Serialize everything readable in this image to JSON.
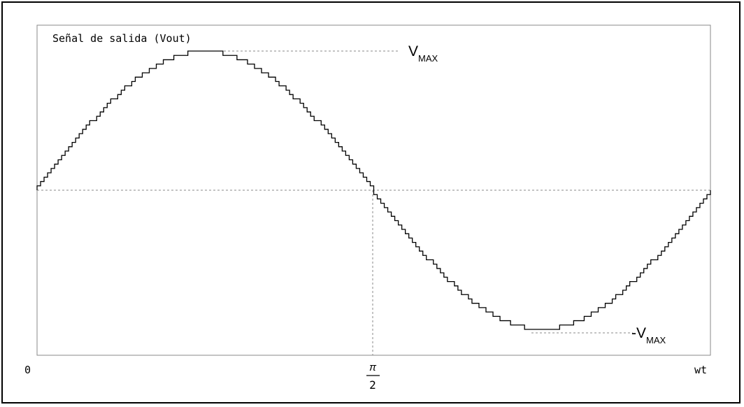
{
  "chart_data": {
    "type": "line",
    "style": "staircase",
    "title": "Señal de salida (Vout)",
    "xlabel": "wt",
    "ylabel": "",
    "x_ticks": [
      {
        "value": 0,
        "label": "0"
      },
      {
        "value": 0.5,
        "label_num": "π",
        "label_den": "2"
      },
      {
        "value": 1,
        "label": "wt"
      }
    ],
    "annotations": {
      "max": {
        "base": "V",
        "sub": "MAX"
      },
      "min": {
        "base": "-V",
        "sub": "MAX"
      }
    },
    "xlim": [
      0,
      1
    ],
    "ylim": [
      -1,
      1
    ],
    "series": [
      {
        "function": "sine",
        "cycles": 1,
        "steps": 192,
        "quantization_levels": 64
      }
    ],
    "grid": false,
    "legend": "none",
    "colors": {
      "line": "#000000",
      "reference": "#8a8a8a",
      "frame": "#000000"
    }
  }
}
